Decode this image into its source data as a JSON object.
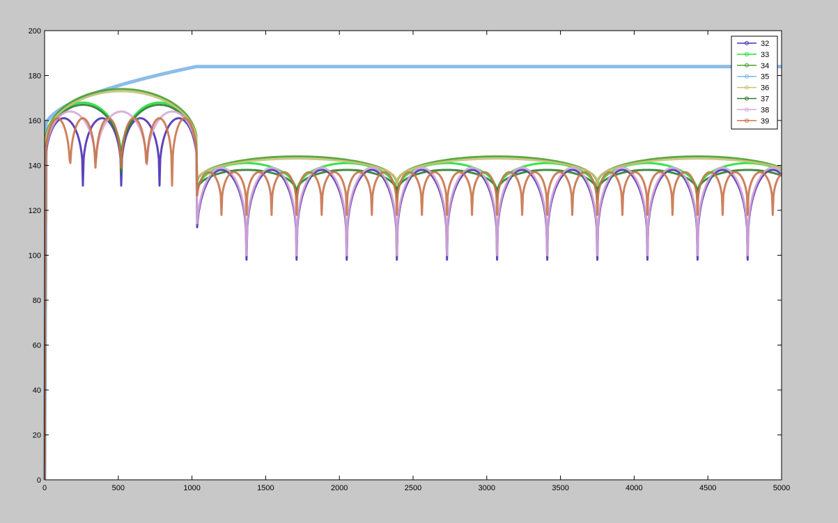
{
  "chart_data": {
    "type": "line",
    "title": "",
    "xlabel": "",
    "ylabel": "",
    "xlim": [
      0,
      5000
    ],
    "ylim": [
      0,
      200
    ],
    "x_ticks": [
      0,
      500,
      1000,
      1500,
      2000,
      2500,
      3000,
      3500,
      4000,
      4500,
      5000
    ],
    "y_ticks": [
      0,
      20,
      40,
      60,
      80,
      100,
      120,
      140,
      160,
      180,
      200
    ],
    "grid": false,
    "legend_position": "top-right",
    "series": [
      {
        "name": "32",
        "color": "#4b2fb4",
        "marker": "x",
        "period_pre": 260,
        "period_post": 340,
        "peak_pre": 161,
        "peak_post": 138,
        "dip": 98
      },
      {
        "name": "33",
        "color": "#1fe13a",
        "marker": "asterisk",
        "period_pre": 520,
        "period_post": 680,
        "peak_pre": 168,
        "peak_post": 141,
        "dip": 125
      },
      {
        "name": "34",
        "color": "#4aa02c",
        "marker": "triangle-up",
        "period_pre": 1040,
        "period_post": 1360,
        "peak_pre": 174,
        "peak_post": 144,
        "dip": 130
      },
      {
        "name": "35",
        "color": "#7eb6e6",
        "marker": "plus",
        "period_pre": 0,
        "period_post": 0,
        "peak_pre": 184,
        "peak_post": 184,
        "dip": 184
      },
      {
        "name": "36",
        "color": "#c8c07a",
        "marker": "triangle-down",
        "period_pre": 1040,
        "period_post": 1360,
        "peak_pre": 173,
        "peak_post": 143,
        "dip": 131
      },
      {
        "name": "37",
        "color": "#2e7d32",
        "marker": "triangle-right",
        "period_pre": 520,
        "period_post": 680,
        "peak_pre": 167,
        "peak_post": 138,
        "dip": 126
      },
      {
        "name": "38",
        "color": "#d6a8d6",
        "marker": "triangle-left",
        "period_pre": 347,
        "period_post": 340,
        "peak_pre": 164,
        "peak_post": 139,
        "dip": 100
      },
      {
        "name": "39",
        "color": "#c8734b",
        "marker": "triangle-down",
        "period_pre": 173,
        "period_post": 170,
        "peak_pre": 161,
        "peak_post": 137,
        "dip": 118
      }
    ]
  }
}
